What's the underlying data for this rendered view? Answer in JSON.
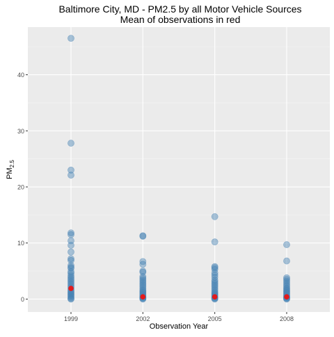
{
  "chart_data": {
    "type": "scatter",
    "title_line1": "Baltimore City, MD - PM2.5 by all Motor Vehicle Sources",
    "title_line2": "Mean of observations in red",
    "xlabel": "Observation Year",
    "ylabel_main": "PM",
    "ylabel_sub": "2.5",
    "categories": [
      "1999",
      "2002",
      "2005",
      "2008"
    ],
    "ylim": [
      -2.3,
      48.5
    ],
    "yticks": [
      0,
      10,
      20,
      30,
      40
    ],
    "grid": true,
    "point_color": "#4682b4",
    "mean_color": "#e31a1c",
    "observations": [
      {
        "category": "1999",
        "values": [
          46.5,
          27.8,
          23.0,
          22.1,
          11.8,
          11.5,
          10.4,
          9.6,
          8.4,
          7.2,
          6.9,
          6.0,
          5.7,
          5.5,
          4.9,
          4.6,
          4.2,
          3.9,
          3.6,
          3.3,
          3.0,
          2.7,
          2.4,
          2.1,
          1.8,
          1.5,
          1.3,
          1.1,
          0.9,
          0.7,
          0.5,
          0.3,
          0.1,
          0.0
        ]
      },
      {
        "category": "2002",
        "values": [
          11.3,
          11.2,
          6.7,
          6.2,
          5.0,
          4.8,
          4.0,
          3.7,
          3.4,
          3.1,
          2.8,
          2.5,
          2.2,
          1.9,
          1.6,
          1.4,
          1.2,
          1.0,
          0.8,
          0.6,
          0.4,
          0.3,
          0.2,
          0.1,
          0.0
        ]
      },
      {
        "category": "2005",
        "values": [
          14.7,
          10.2,
          5.8,
          5.6,
          5.3,
          4.7,
          4.3,
          3.9,
          3.4,
          3.1,
          2.8,
          2.5,
          2.2,
          1.9,
          1.6,
          1.3,
          1.1,
          0.9,
          0.7,
          0.5,
          0.3,
          0.2,
          0.1,
          0.0
        ]
      },
      {
        "category": "2008",
        "values": [
          9.7,
          6.8,
          3.8,
          3.5,
          3.2,
          2.9,
          2.6,
          2.3,
          2.0,
          1.8,
          1.6,
          1.4,
          1.2,
          1.0,
          0.8,
          0.6,
          0.4,
          0.3,
          0.2,
          0.1,
          0.0
        ]
      }
    ],
    "means": [
      {
        "category": "1999",
        "value": 1.9
      },
      {
        "category": "2002",
        "value": 0.4
      },
      {
        "category": "2005",
        "value": 0.4
      },
      {
        "category": "2008",
        "value": 0.4
      }
    ]
  }
}
